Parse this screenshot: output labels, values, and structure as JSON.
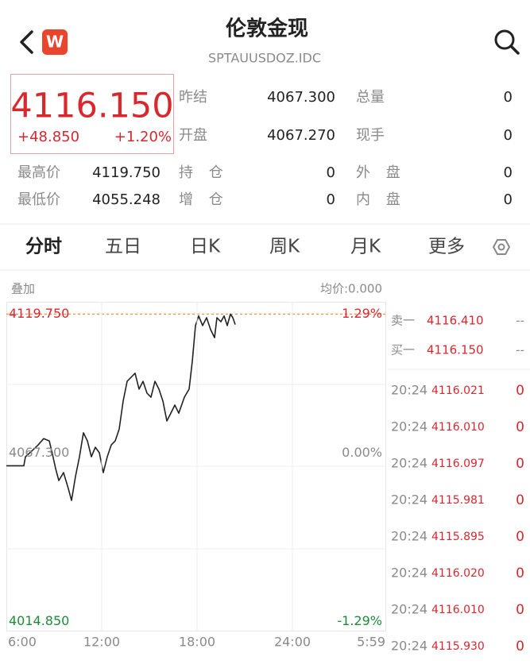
{
  "header": {
    "logo": "W",
    "title": "伦敦金现",
    "subtitle": "SPTAUUSDOZ.IDC"
  },
  "quote": {
    "price": "4116.150",
    "change": "+48.850",
    "change_pct": "+1.20%"
  },
  "stats": [
    {
      "label": "昨结",
      "value": "4067.300"
    },
    {
      "label": "总量",
      "value": "0"
    },
    {
      "label": "开盘",
      "value": "4067.270"
    },
    {
      "label": "现手",
      "value": "0"
    },
    {
      "label": "最高价",
      "value": "4119.750"
    },
    {
      "label": "持 仓",
      "value": "0"
    },
    {
      "label": "外 盘",
      "value": "0"
    },
    {
      "label": "最低价",
      "value": "4055.248"
    },
    {
      "label": "增 仓",
      "value": "0"
    },
    {
      "label": "内 盘",
      "value": "0"
    }
  ],
  "tabs": [
    "分时",
    "五日",
    "日K",
    "周K",
    "月K",
    "更多"
  ],
  "chart_header": {
    "overlay": "叠加",
    "average": "均价:0.000"
  },
  "chart": {
    "type": "line",
    "color": "#222222",
    "x": [
      6,
      7.1,
      7.2,
      7.6,
      8,
      8.35,
      8.7,
      8.9,
      9.1,
      9.3,
      9.6,
      9.9,
      10.1,
      10.35,
      10.6,
      10.85,
      11.1,
      11.35,
      11.6,
      11.85,
      12.1,
      12.35,
      12.6,
      12.85,
      13.1,
      13.35,
      13.6,
      13.85,
      14.1,
      14.35,
      14.6,
      14.85,
      15.1,
      15.35,
      15.6,
      15.85,
      16.1,
      16.35,
      16.6,
      16.85,
      17.2,
      17.5,
      17.7,
      17.9,
      18.1,
      18.35,
      18.6,
      18.85,
      19.1,
      19.25,
      19.5,
      19.7,
      19.9,
      20.1,
      20.25,
      20.4
    ],
    "values": [
      4067.3,
      4067.3,
      4070.4,
      4072.4,
      4074.5,
      4076.7,
      4075.9,
      4071.3,
      4066.3,
      4062.2,
      4064.9,
      4059.4,
      4055.3,
      4063.6,
      4070.4,
      4078.7,
      4075.9,
      4070.4,
      4073.7,
      4071.8,
      4064.9,
      4070.4,
      4074.5,
      4075.9,
      4080.0,
      4089.7,
      4096.5,
      4097.9,
      4099.3,
      4093.8,
      4096.5,
      4092.4,
      4091.0,
      4096.5,
      4093.8,
      4089.7,
      4082.8,
      4085.5,
      4088.3,
      4085.5,
      4091.0,
      4093.8,
      4103.4,
      4115.8,
      4119.1,
      4115.8,
      4118.5,
      4114.4,
      4111.6,
      4118.5,
      4117.1,
      4119.1,
      4115.8,
      4119.75,
      4118.5,
      4116.15
    ],
    "xlim": [
      6,
      30
    ],
    "ylim": [
      4010,
      4124
    ],
    "xticks": [
      {
        "value": 6,
        "label": "6:00"
      },
      {
        "value": 12,
        "label": "12:00"
      },
      {
        "value": 18,
        "label": "18:00"
      },
      {
        "value": 24,
        "label": "24:00"
      },
      {
        "value": 29.98,
        "label": "5:59"
      }
    ],
    "yticks": [
      {
        "value": 4119.75,
        "label": "4119.750"
      },
      {
        "value": 4067.3,
        "label": "4067.300"
      },
      {
        "value": 4014.85,
        "label": "4014.850"
      }
    ],
    "pct_labels": [
      "1.29%",
      "0.00%",
      "-1.29%"
    ]
  },
  "order_book": [
    {
      "label": "卖一",
      "price": "4116.410",
      "volume": "--"
    },
    {
      "label": "买一",
      "price": "4116.150",
      "volume": "--"
    }
  ],
  "trades": [
    {
      "time": "20:24",
      "price": "4116.021",
      "volume": "0"
    },
    {
      "time": "20:24",
      "price": "4116.010",
      "volume": "0"
    },
    {
      "time": "20:24",
      "price": "4116.097",
      "volume": "0"
    },
    {
      "time": "20:24",
      "price": "4115.981",
      "volume": "0"
    },
    {
      "time": "20:24",
      "price": "4115.895",
      "volume": "0"
    },
    {
      "time": "20:24",
      "price": "4116.020",
      "volume": "0"
    },
    {
      "time": "20:24",
      "price": "4116.010",
      "volume": "0"
    },
    {
      "time": "20:24",
      "price": "4115.930",
      "volume": "0"
    }
  ]
}
